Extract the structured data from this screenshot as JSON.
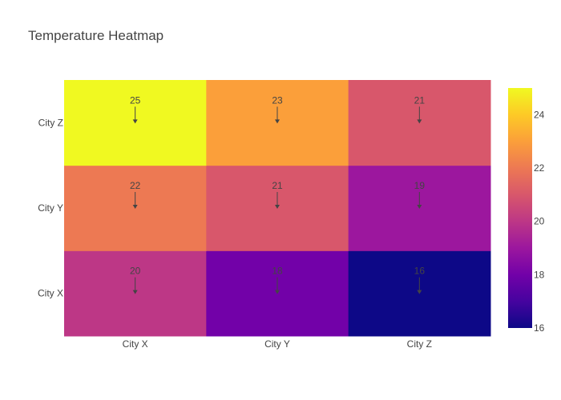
{
  "chart_data": {
    "type": "heatmap",
    "title": "Temperature Heatmap",
    "x_categories": [
      "City X",
      "City Y",
      "City Z"
    ],
    "y_categories": [
      "City X",
      "City Y",
      "City Z"
    ],
    "z": [
      [
        20,
        18,
        16
      ],
      [
        22,
        21,
        19
      ],
      [
        25,
        23,
        21
      ]
    ],
    "annotations": [
      {
        "x": "City X",
        "y": "City X",
        "text": "20"
      },
      {
        "x": "City Y",
        "y": "City X",
        "text": "18"
      },
      {
        "x": "City Z",
        "y": "City X",
        "text": "16"
      },
      {
        "x": "City X",
        "y": "City Y",
        "text": "22"
      },
      {
        "x": "City Y",
        "y": "City Y",
        "text": "21"
      },
      {
        "x": "City Z",
        "y": "City Y",
        "text": "19"
      },
      {
        "x": "City X",
        "y": "City Z",
        "text": "25"
      },
      {
        "x": "City Y",
        "y": "City Z",
        "text": "23"
      },
      {
        "x": "City Z",
        "y": "City Z",
        "text": "21"
      }
    ],
    "colorscale": {
      "name": "plasma",
      "colors": [
        "#0d0887",
        "#46039f",
        "#7201a8",
        "#9c179e",
        "#bd3786",
        "#d8576b",
        "#ed7953",
        "#fb9f3a",
        "#fdca26",
        "#f0f921"
      ],
      "zmin": 16,
      "zmax": 25,
      "colorbar_ticks": [
        "16",
        "18",
        "20",
        "22",
        "24"
      ]
    }
  }
}
